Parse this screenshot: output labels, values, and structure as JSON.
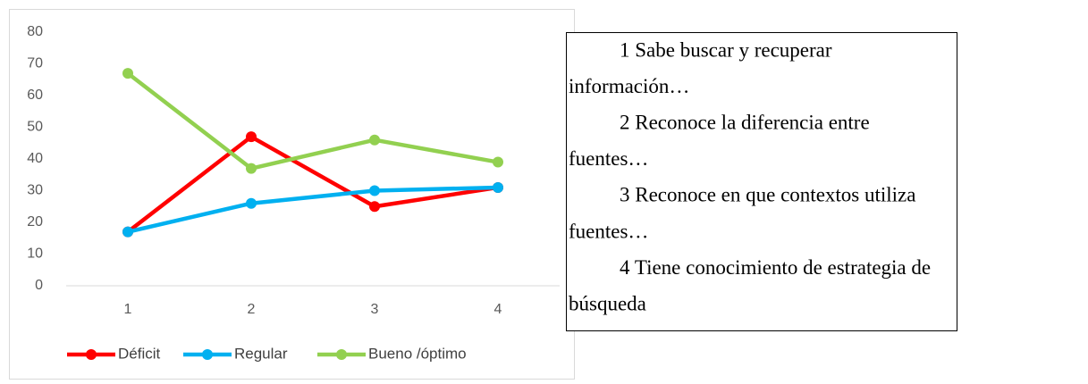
{
  "chart_data": {
    "type": "line",
    "categories": [
      "1",
      "2",
      "3",
      "4"
    ],
    "series": [
      {
        "name": "Déficit",
        "color": "#ff0000",
        "values": [
          17,
          47,
          25,
          31
        ]
      },
      {
        "name": "Regular",
        "color": "#00b0f0",
        "values": [
          17,
          26,
          30,
          31
        ]
      },
      {
        "name": "Bueno /óptimo",
        "color": "#92d050",
        "values": [
          67,
          37,
          46,
          39
        ]
      }
    ],
    "ylim": [
      0,
      80
    ],
    "yticks": [
      0,
      10,
      20,
      30,
      40,
      50,
      60,
      70,
      80
    ],
    "grid": false,
    "legend": "bottom"
  },
  "notes": [
    [
      "1 Sabe buscar y recuperar",
      "información…"
    ],
    [
      "2 Reconoce la diferencia entre",
      "fuentes…"
    ],
    [
      "3 Reconoce en que contextos utiliza",
      "fuentes…"
    ],
    [
      "4 Tiene conocimiento de estrategia de",
      "búsqueda"
    ]
  ]
}
